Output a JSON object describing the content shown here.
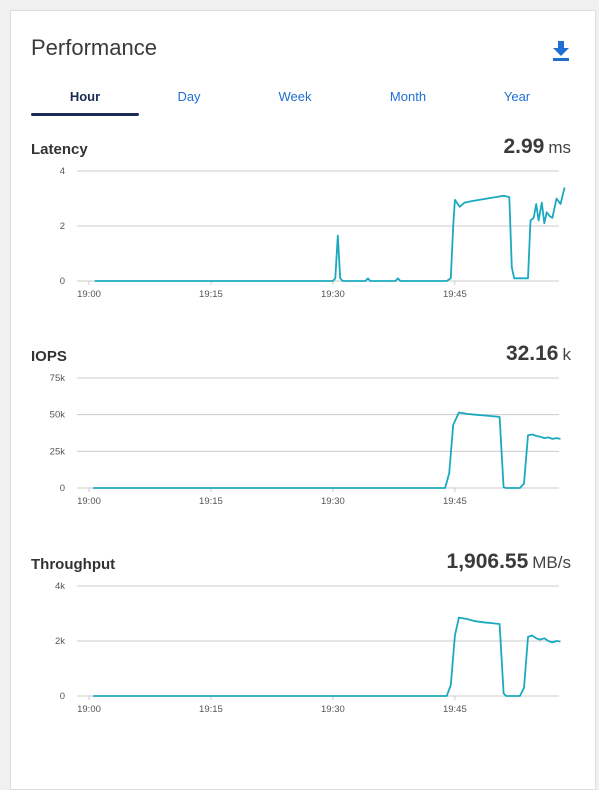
{
  "title": "Performance",
  "download_icon": "download-icon",
  "tabs": [
    {
      "label": "Hour",
      "active": true
    },
    {
      "label": "Day",
      "active": false
    },
    {
      "label": "Week",
      "active": false
    },
    {
      "label": "Month",
      "active": false
    },
    {
      "label": "Year",
      "active": false
    }
  ],
  "colors": {
    "line": "#1ba9bf",
    "accent": "#1f6fd1",
    "active_tab": "#1a2c55",
    "axis": "#cccccc"
  },
  "chart_data": [
    {
      "type": "line",
      "title": "Latency",
      "current_value": "2.99",
      "unit": "ms",
      "xlim": [
        0,
        57
      ],
      "ylim": [
        0,
        4
      ],
      "y_ticks": [
        {
          "v": 0,
          "label": "0"
        },
        {
          "v": 2,
          "label": "2"
        },
        {
          "v": 4,
          "label": "4"
        }
      ],
      "x_ticks": [
        {
          "v": 0,
          "label": "19:00"
        },
        {
          "v": 15,
          "label": "19:15"
        },
        {
          "v": 30,
          "label": "19:30"
        },
        {
          "v": 45,
          "label": "19:45"
        }
      ],
      "series": [
        {
          "x": [
            0.7,
            30.0,
            30.3,
            30.6,
            30.9,
            31.2,
            34.0,
            34.3,
            34.6,
            37.7,
            38.0,
            38.3,
            44.0,
            44.5,
            44.8,
            45.0,
            45.6,
            46.2,
            47.0,
            48.0,
            49.0,
            50.0,
            51.0,
            51.7,
            52.0,
            52.3,
            53.5,
            54.0,
            54.3,
            54.7,
            55.0,
            55.3,
            55.7,
            56.0,
            56.3,
            56.7,
            57.0,
            57.5,
            58.0,
            58.5
          ],
          "y": [
            0,
            0,
            0.1,
            1.65,
            0.1,
            0,
            0,
            0.1,
            0,
            0,
            0.1,
            0,
            0,
            0.1,
            2.0,
            2.95,
            2.7,
            2.85,
            2.9,
            2.95,
            3.0,
            3.05,
            3.1,
            3.05,
            0.5,
            0.1,
            0.1,
            0.1,
            2.2,
            2.3,
            2.8,
            2.2,
            2.85,
            2.1,
            2.5,
            2.35,
            2.3,
            3.0,
            2.8,
            3.4
          ]
        }
      ]
    },
    {
      "type": "line",
      "title": "IOPS",
      "current_value": "32.16",
      "unit": "k",
      "xlim": [
        0,
        57
      ],
      "ylim": [
        0,
        75
      ],
      "y_ticks": [
        {
          "v": 0,
          "label": "0"
        },
        {
          "v": 25,
          "label": "25k"
        },
        {
          "v": 50,
          "label": "50k"
        },
        {
          "v": 75,
          "label": "75k"
        }
      ],
      "x_ticks": [
        {
          "v": 0,
          "label": "19:00"
        },
        {
          "v": 15,
          "label": "19:15"
        },
        {
          "v": 30,
          "label": "19:30"
        },
        {
          "v": 45,
          "label": "19:45"
        }
      ],
      "series": [
        {
          "x": [
            0.5,
            43.8,
            44.3,
            44.8,
            45.5,
            46.5,
            47.5,
            48.5,
            49.5,
            50.5,
            51.0,
            51.3,
            53.0,
            53.5,
            54.0,
            54.5,
            55.0,
            55.5,
            56.0,
            56.5,
            57.0,
            57.5,
            58.0
          ],
          "y": [
            0,
            0,
            10,
            43,
            51.5,
            50.5,
            50,
            49.5,
            49,
            48.5,
            0.5,
            0,
            0,
            3,
            36,
            36.5,
            35.5,
            35,
            34,
            34.5,
            33.5,
            34,
            33.5
          ]
        }
      ]
    },
    {
      "type": "line",
      "title": "Throughput",
      "current_value": "1,906.55",
      "unit": "MB/s",
      "xlim": [
        0,
        57
      ],
      "ylim": [
        0,
        4
      ],
      "y_ticks": [
        {
          "v": 0,
          "label": "0"
        },
        {
          "v": 2,
          "label": "2k"
        },
        {
          "v": 4,
          "label": "4k"
        }
      ],
      "x_ticks": [
        {
          "v": 0,
          "label": "19:00"
        },
        {
          "v": 15,
          "label": "19:15"
        },
        {
          "v": 30,
          "label": "19:30"
        },
        {
          "v": 45,
          "label": "19:45"
        }
      ],
      "series": [
        {
          "x": [
            0.5,
            44.0,
            44.5,
            45.0,
            45.5,
            46.5,
            47.5,
            48.5,
            49.5,
            50.5,
            51.0,
            51.3,
            53.0,
            53.5,
            54.0,
            54.5,
            55.0,
            55.5,
            56.0,
            56.5,
            57.0,
            57.5,
            58.0
          ],
          "y": [
            0,
            0,
            0.4,
            2.2,
            2.85,
            2.8,
            2.72,
            2.68,
            2.65,
            2.62,
            0.1,
            0,
            0,
            0.3,
            2.15,
            2.2,
            2.1,
            2.05,
            2.1,
            2.0,
            1.95,
            2.0,
            1.98
          ]
        }
      ]
    }
  ]
}
